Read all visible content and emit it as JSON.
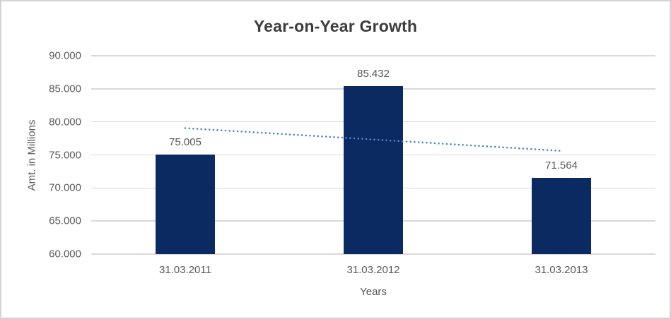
{
  "chart_data": {
    "type": "bar",
    "title": "Year-on-Year Growth",
    "xlabel": "Years",
    "ylabel": "Amt. in Millions",
    "categories": [
      "31.03.2011",
      "31.03.2012",
      "31.03.2013"
    ],
    "values": [
      75005,
      85432,
      71564
    ],
    "value_labels": [
      "75.005",
      "85.432",
      "71.564"
    ],
    "ylim": [
      60000,
      90000
    ],
    "ytick_step": 5000,
    "yticks": [
      60000,
      65000,
      70000,
      75000,
      80000,
      85000,
      90000
    ],
    "ytick_labels": [
      "60.000",
      "65.000",
      "70.000",
      "75.000",
      "80.000",
      "85.000",
      "90.000"
    ],
    "grid": true,
    "legend": "none",
    "trendline": {
      "type": "linear",
      "style": "dotted",
      "start_value": 79050,
      "end_value": 75610
    }
  },
  "colors": {
    "bar_fill": "#0c2a62",
    "trendline": "#4a86cb",
    "gridline": "#d9d9d9",
    "axis_text": "#595959",
    "title_text": "#3d3d3d",
    "frame_border": "#d4d4d4",
    "background": "#ffffff"
  }
}
